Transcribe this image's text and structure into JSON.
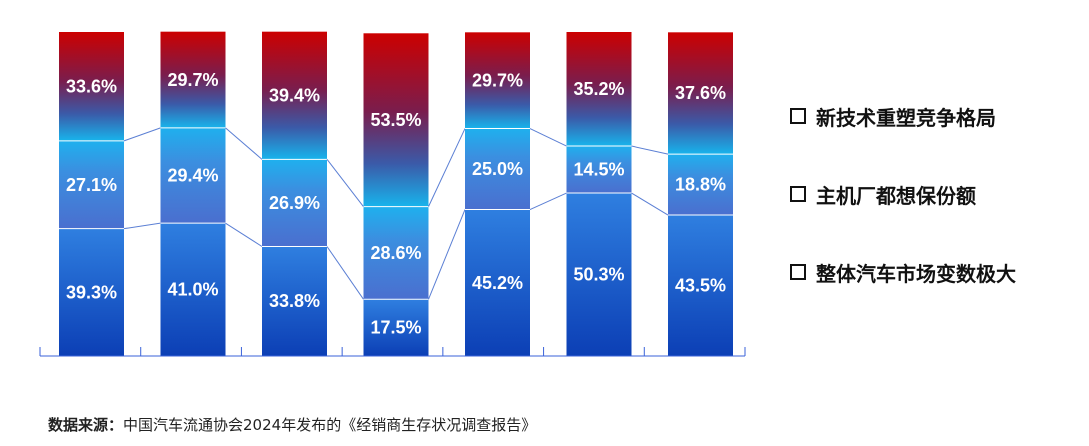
{
  "chart_data": {
    "type": "bar",
    "stacked": true,
    "percent_stacked": true,
    "categories": [
      "",
      "",
      "",
      "",
      "",
      "",
      ""
    ],
    "series": [
      {
        "name": "整体汽车市场变数极大",
        "values": [
          39.3,
          41.0,
          33.8,
          17.5,
          45.2,
          50.3,
          43.5
        ],
        "labels": [
          "39.3%",
          "41.0%",
          "33.8%",
          "17.5%",
          "45.2%",
          "50.3%",
          "43.5%"
        ],
        "color_top": "#2f7fe0",
        "color_bottom": "#0c3fb5"
      },
      {
        "name": "主机厂都想保份额",
        "values": [
          27.1,
          29.4,
          26.9,
          28.6,
          25.0,
          14.5,
          18.8
        ],
        "labels": [
          "27.1%",
          "29.4%",
          "26.9%",
          "28.6%",
          "25.0%",
          "14.5%",
          "18.8%"
        ],
        "color_top": "#6a8fe0",
        "color_bottom": "#3f6ac9"
      },
      {
        "name": "新技术重塑竞争格局",
        "values": [
          33.6,
          29.7,
          39.4,
          53.5,
          29.7,
          35.2,
          37.6
        ],
        "labels": [
          "33.6%",
          "29.7%",
          "39.4%",
          "53.5%",
          "29.7%",
          "35.2%",
          "37.6%"
        ],
        "color_top": "#cc0000",
        "color_bottom": "#18b4ec"
      }
    ],
    "ylim": [
      0,
      100
    ],
    "grid": false,
    "legend_position": "right",
    "connector_lines": true
  },
  "legend": {
    "items": [
      "新技术重塑竞争格局",
      "主机厂都想保份额",
      "整体汽车市场变数极大"
    ]
  },
  "source": {
    "label": "数据来源：",
    "text": "中国汽车流通协会2024年发布的《经销商生存状况调查报告》"
  },
  "colors": {
    "axis": "#3a62d9",
    "connector": "#5b7fd4"
  }
}
